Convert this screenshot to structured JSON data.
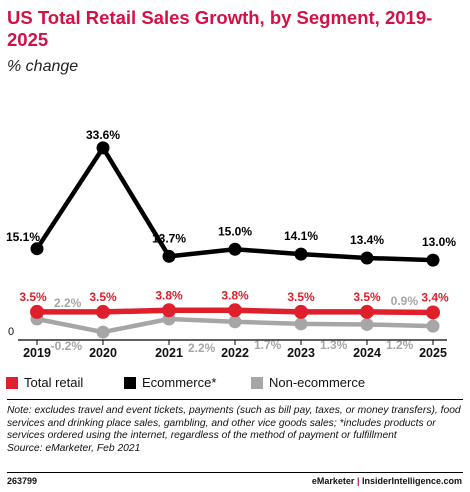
{
  "header": {
    "title": "US Total Retail Sales Growth, by Segment, 2019-2025",
    "subtitle": "% change"
  },
  "chart_data": {
    "type": "line",
    "title": "US Total Retail Sales Growth, by Segment, 2019-2025",
    "subtitle": "% change",
    "x": [
      "2019",
      "2020",
      "2021",
      "2022",
      "2023",
      "2024",
      "2025"
    ],
    "yaxis_zero_label": "0",
    "ylim": [
      -0.2,
      33.6
    ],
    "grid": false,
    "legend_placement": "bottom",
    "series": [
      {
        "name": "Ecommerce*",
        "color": "#000000",
        "values": [
          15.1,
          33.6,
          13.7,
          15.0,
          14.1,
          13.4,
          13.0
        ],
        "labels": [
          "15.1%",
          "33.6%",
          "13.7%",
          "15.0%",
          "14.1%",
          "13.4%",
          "13.0%"
        ]
      },
      {
        "name": "Total retail",
        "color": "#e01f2d",
        "values": [
          3.5,
          3.5,
          3.8,
          3.8,
          3.5,
          3.5,
          3.4
        ],
        "labels": [
          "3.5%",
          "3.5%",
          "3.8%",
          "3.8%",
          "3.5%",
          "3.5%",
          "3.4%"
        ]
      },
      {
        "name": "Non-ecommerce",
        "color": "#a6a6a6",
        "values": [
          2.2,
          -0.2,
          2.2,
          1.7,
          1.3,
          1.2,
          0.9
        ],
        "labels": [
          "2.2%",
          "-0.2%",
          "2.2%",
          "1.7%",
          "1.3%",
          "1.2%",
          "0.9%"
        ]
      }
    ]
  },
  "legend": {
    "items": [
      {
        "label": "Total retail",
        "color": "#e01f2d"
      },
      {
        "label": "Ecommerce*",
        "color": "#000000"
      },
      {
        "label": "Non-ecommerce",
        "color": "#a6a6a6"
      }
    ]
  },
  "notes": {
    "text": "Note: excludes travel and event tickets, payments (such as bill pay, taxes, or money transfers), food services and drinking place sales, gambling, and other vice goods sales; *includes products or services ordered using the internet, regardless of the method of payment or fulfillment",
    "source": "Source: eMarketer, Feb 2021"
  },
  "footer": {
    "chart_id": "263799",
    "brand_a": "eMarketer",
    "separator": " | ",
    "brand_b": "InsiderIntelligence.com"
  }
}
